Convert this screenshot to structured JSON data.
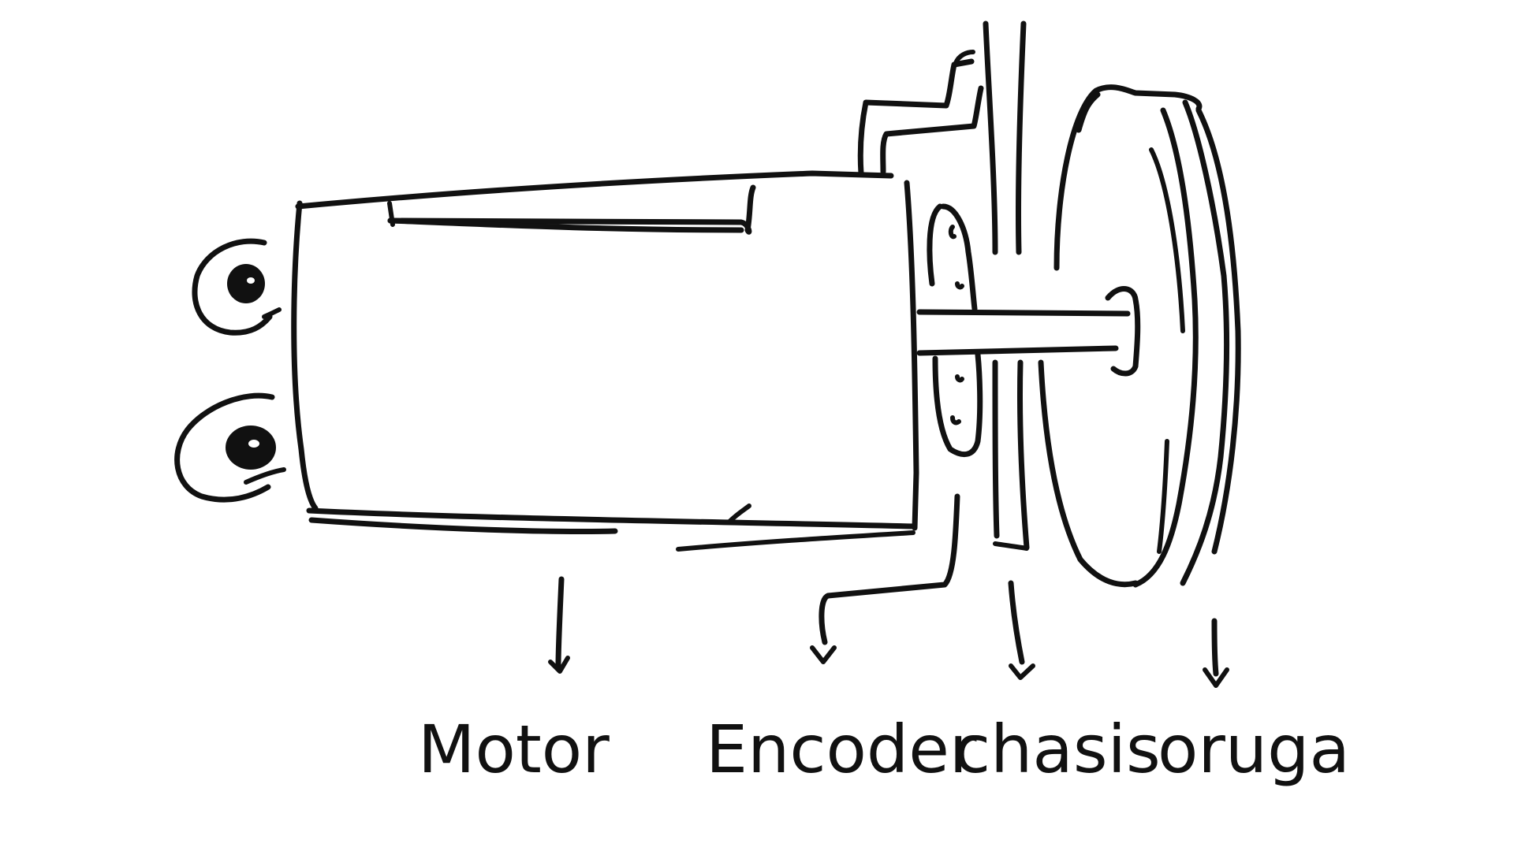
{
  "diagram": {
    "labels": {
      "motor": "Motor",
      "encoder": "Encoder",
      "chassis": "chasis",
      "track": "oruga"
    },
    "ink_color": "#111111",
    "background": "#ffffff"
  }
}
